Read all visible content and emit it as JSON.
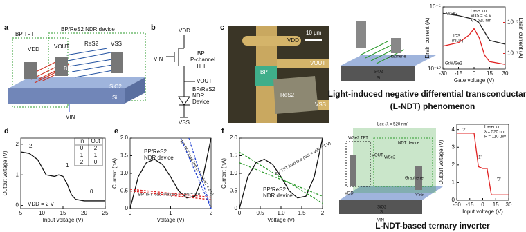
{
  "panel_a": {
    "label": "a",
    "bp_tft": "BP TFT",
    "ndr_device": "BP/ReS2 NDR device",
    "vdd": "VDD",
    "vout": "VOUT",
    "vss": "VSS",
    "res2": "ReS2",
    "bp": "BP",
    "sio2": "SiO2",
    "si": "Si",
    "vin": "VIN"
  },
  "panel_b": {
    "label": "b",
    "vdd": "VDD",
    "tft": [
      "BP",
      "P-channel",
      "TFT"
    ],
    "vin": "VIN",
    "vout": "VOUT",
    "ndr": [
      "BP/ReS2",
      "NDR",
      "Device"
    ],
    "vss": "VSS"
  },
  "panel_c": {
    "label": "c",
    "scale": "10 μm",
    "vdd": "VDD",
    "vout": "VOUT",
    "bp": "BP",
    "res2": "ReS2",
    "vss": "VSS"
  },
  "lndt": {
    "title": [
      "Light-induced negative differential transconductance",
      "(L-NDT) phenomenon"
    ],
    "graphene": "Graphene",
    "sio2": "SiO2",
    "si": "Si",
    "chart": {
      "type": "line",
      "xlabel": "Gate voltage (V)",
      "ylabel": "Drain current (A)",
      "y2label": "Drain current (A)",
      "log": true,
      "xlim": [
        -30,
        30
      ],
      "xticks": [
        -30,
        -15,
        0,
        15,
        30
      ],
      "ylim": [
        1e-10,
        1e-05
      ],
      "yticks": [
        {
          "value": 1e-10,
          "label": "10⁻¹⁰"
        },
        {
          "value": 1e-05,
          "label": "10⁻⁵"
        }
      ],
      "y2lim": [
        1e-08,
        0.0001
      ],
      "y2ticks": [
        {
          "value": 1e-07,
          "label": "10⁻⁷"
        },
        {
          "value": 1e-05,
          "label": "10⁻⁵"
        }
      ],
      "annotations": [
        "Laser on",
        "VDS = -4 V",
        "λ = 520 nm",
        "WSe2",
        "Gr/WSe2",
        "IDS",
        "(NDT)"
      ],
      "series": [
        {
          "color": "#222222",
          "x": [
            -30,
            -15,
            0,
            5,
            10,
            15,
            30
          ],
          "values": [
            3e-06,
            2e-06,
            1e-06,
            5e-07,
            1e-07,
            2e-08,
            1e-08
          ]
        },
        {
          "color": "#e02020",
          "axis": "y2",
          "x": [
            -30,
            -15,
            -5,
            0,
            5,
            10,
            15,
            30
          ],
          "values": [
            3e-07,
            5e-07,
            1.5e-06,
            4e-06,
            1e-06,
            8e-08,
            3e-08,
            2e-08
          ]
        }
      ]
    }
  },
  "inverter": {
    "title": "L-NDT-based ternary inverter",
    "lex": "Lex (λ = 520 nm)",
    "wse2_tft": "WSe2 TFT",
    "ndt_device": "NDT device",
    "wse2": "WSe2",
    "graphene": "Graphene",
    "sio2": "SiO2",
    "si": "Si",
    "vin": "VIN",
    "vdd": "VDD",
    "vss": "VSS",
    "vout": "VOUT",
    "chart": {
      "type": "line",
      "xlabel": "Input voltage (V)",
      "ylabel": "Output voltage (V)",
      "xlim": [
        -30,
        30
      ],
      "xticks": [
        -30,
        -15,
        0,
        15,
        30
      ],
      "ylim": [
        0,
        4.3
      ],
      "yticks": [
        0,
        1,
        2,
        3,
        4
      ],
      "annotations": [
        "Laser on",
        "λ = 520 nm",
        "P = 110 μW",
        "'2'",
        "'1'",
        "'0'"
      ],
      "series": [
        {
          "color": "#e02020",
          "x": [
            -30,
            -15,
            -10,
            -5,
            0,
            5,
            10,
            15,
            30
          ],
          "values": [
            3.8,
            3.8,
            3.8,
            1.9,
            1.8,
            1.8,
            0.3,
            0.3,
            0.3
          ]
        }
      ]
    }
  },
  "panel_d": {
    "label": "d",
    "type": "line",
    "xlabel": "Input voltage (V)",
    "ylabel": "Output voltage (V)",
    "xlim": [
      5,
      25
    ],
    "xticks": [
      5,
      10,
      15,
      20,
      25
    ],
    "ylim": [
      -0.1,
      2.2
    ],
    "yticks": [
      0,
      1,
      2
    ],
    "table": {
      "header": [
        "In",
        "Out"
      ],
      "rows": [
        [
          "0",
          "2"
        ],
        [
          "1",
          "1"
        ],
        [
          "2",
          "0"
        ]
      ]
    },
    "vdd": "VDD = 2 V",
    "states": [
      "2",
      "1",
      "0"
    ],
    "series": [
      {
        "color": "#111111",
        "x": [
          5,
          7,
          9,
          11,
          13,
          14,
          15,
          16,
          17,
          18,
          20,
          25
        ],
        "values": [
          1.75,
          1.7,
          1.5,
          1.0,
          0.95,
          1.0,
          0.95,
          0.7,
          0.35,
          0.2,
          0.15,
          0.15
        ]
      }
    ]
  },
  "panel_e": {
    "label": "e",
    "type": "line",
    "xlabel": "Voltage (V)",
    "ylabel": "Current (nA)",
    "xlim": [
      0,
      2
    ],
    "xticks": [
      0,
      1,
      2
    ],
    "ylim": [
      0,
      2
    ],
    "yticks": [
      0,
      0.5,
      {
        "value": 1,
        "label": "1.0"
      },
      1.5,
      {
        "value": 2,
        "label": "2.0"
      }
    ],
    "device": [
      "BP/ReS2",
      "NDR device"
    ],
    "loads": [
      "BP TFT load line (VG = VIN = 0 V)",
      "BP TFT load line (VG = VIN = 2 V)"
    ],
    "series": [
      {
        "color": "#111111",
        "x": [
          0,
          0.2,
          0.4,
          0.6,
          0.8,
          1.0,
          1.2,
          1.4,
          1.6,
          1.8,
          2.0
        ],
        "values": [
          0,
          0.9,
          1.3,
          1.4,
          1.25,
          0.9,
          0.5,
          0.3,
          0.35,
          0.9,
          2.0
        ]
      },
      {
        "color": "#e02020",
        "x": [
          0,
          2
        ],
        "values": [
          0.5,
          0.25
        ]
      },
      {
        "color": "#e02020",
        "x": [
          0,
          2
        ],
        "values": [
          0.55,
          0.32
        ]
      },
      {
        "color": "#2040d0",
        "x": [
          1.25,
          2
        ],
        "values": [
          2,
          0
        ]
      },
      {
        "color": "#2040d0",
        "x": [
          1.45,
          2
        ],
        "values": [
          2,
          0
        ]
      }
    ]
  },
  "panel_f": {
    "label": "f",
    "type": "line",
    "xlabel": "Voltage (V)",
    "ylabel": "Current (nA)",
    "xlim": [
      0,
      2
    ],
    "xticks": [
      0,
      0.5,
      {
        "value": 1,
        "label": "1.0"
      },
      1.5,
      2
    ],
    "ylim": [
      0,
      2
    ],
    "yticks": [
      0,
      0.5,
      {
        "value": 1,
        "label": "1.0"
      },
      1.5,
      {
        "value": 2,
        "label": "2.0"
      }
    ],
    "device": [
      "BP/ReS2",
      "NDR device"
    ],
    "loads": [
      "BP TFT load line (VG = VIN = 1 V)"
    ],
    "series": [
      {
        "color": "#111111",
        "x": [
          0,
          0.2,
          0.4,
          0.6,
          0.8,
          1.0,
          1.2,
          1.4,
          1.6,
          1.8,
          2.0
        ],
        "values": [
          0,
          0.9,
          1.3,
          1.4,
          1.25,
          0.9,
          0.5,
          0.3,
          0.35,
          0.9,
          2.0
        ]
      },
      {
        "color": "#2a9a2a",
        "x": [
          0,
          2
        ],
        "values": [
          1.6,
          0.15
        ]
      },
      {
        "color": "#2a9a2a",
        "x": [
          0,
          2
        ],
        "values": [
          1.3,
          0.35
        ]
      }
    ]
  }
}
